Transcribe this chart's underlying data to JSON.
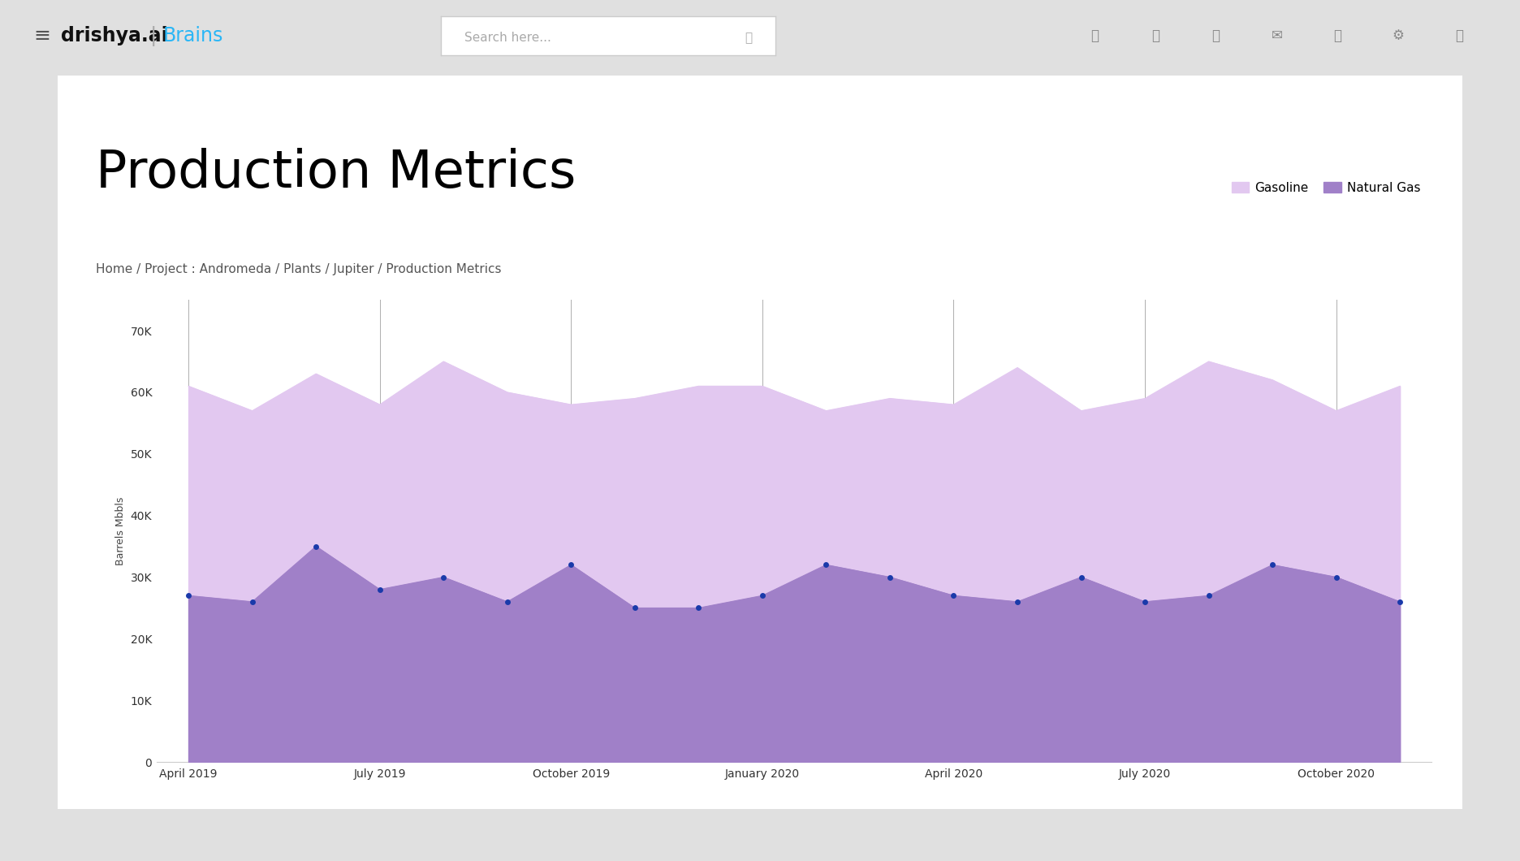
{
  "title": "Production Metrics",
  "breadcrumb": "Home / Project : Andromeda / Plants / Jupiter / Production Metrics",
  "ylabel": "Barrels Mbbls",
  "x_labels": [
    "April 2019",
    "July 2019",
    "October 2019",
    "January 2020",
    "April 2020",
    "July 2020",
    "October 2020"
  ],
  "yticks": [
    0,
    10000,
    20000,
    30000,
    40000,
    50000,
    60000,
    70000
  ],
  "ytick_labels": [
    "0",
    "10K",
    "20K",
    "30K",
    "40K",
    "50K",
    "60K",
    "70K"
  ],
  "gasoline_values": [
    61000,
    57000,
    63000,
    58000,
    65000,
    60000,
    58000,
    59000,
    61000,
    61000,
    57000,
    59000,
    58000,
    64000,
    57000,
    59000,
    65000,
    62000,
    57000,
    61000
  ],
  "natural_gas_values": [
    27000,
    26000,
    35000,
    28000,
    30000,
    26000,
    32000,
    25000,
    25000,
    27000,
    32000,
    30000,
    27000,
    26000,
    30000,
    26000,
    27000,
    32000,
    30000,
    26000
  ],
  "gasoline_color": "#e2c8f0",
  "natural_gas_color": "#a080c8",
  "dot_color": "#1a3aaa",
  "vline_color": "#999999",
  "navbar_bg": "#f8f8f8",
  "outer_bg": "#e0e0e0",
  "card_bg": "#ffffff",
  "legend_gasoline_label": "Gasoline",
  "legend_natural_gas_label": "Natural Gas",
  "title_fontsize": 46,
  "breadcrumb_fontsize": 11,
  "ylabel_fontsize": 9,
  "tick_fontsize": 10,
  "legend_fontsize": 11,
  "figsize": [
    18.72,
    10.6
  ],
  "dpi": 100,
  "n_points": 20,
  "x_label_indices": [
    0,
    3,
    6,
    9,
    12,
    15,
    18
  ]
}
